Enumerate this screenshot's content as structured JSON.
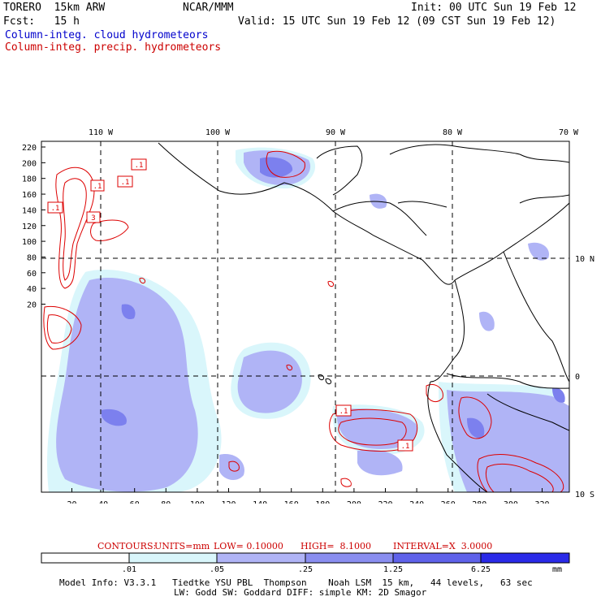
{
  "header": {
    "model": "TORERO  15km ARW",
    "org": "NCAR/MMM",
    "init": "Init: 00 UTC Sun 19 Feb 12",
    "fcst": "Fcst:   15 h",
    "valid": "Valid: 15 UTC Sun 19 Feb 12 (09 CST Sun 19 Feb 12)",
    "field_cloud": "Column-integ. cloud hydrometeors",
    "field_precip": "Column-integ. precip. hydrometeors"
  },
  "map": {
    "lon_labels": [
      "110 W",
      "100 W",
      "90 W",
      "80 W",
      "70 W"
    ],
    "lat_labels": [
      "10 N",
      "0",
      "10 S"
    ],
    "y_ticks": [
      "220",
      "200",
      "180",
      "160",
      "140",
      "120",
      "100",
      "80",
      "60",
      "40",
      "20"
    ],
    "x_ticks": [
      "20",
      "40",
      "60",
      "80",
      "100",
      "120",
      "140",
      "160",
      "180",
      "200",
      "220",
      "240",
      "260",
      "280",
      "300",
      "320"
    ],
    "contour_labels": [
      ".1",
      ".1",
      ".1",
      ".1",
      "3",
      ".1",
      ".1"
    ],
    "colors": {
      "cloud_shade": "#b0b4f6",
      "cloud_light": "#d9f6fb",
      "cloud_dark": "#7c80ee",
      "precip": "#dd0000",
      "coast": "#000000"
    }
  },
  "contour_info": {
    "label": "CONTOURS:",
    "units": "UNITS=mm",
    "low": "LOW= 0.10000",
    "high": "HIGH=  8.1000",
    "interval": "INTERVAL=X  3.0000"
  },
  "colorbar": {
    "ticks": [
      ".01",
      ".05",
      ".25",
      "1.25",
      "6.25"
    ],
    "unit": "mm",
    "colors": [
      "#ffffff",
      "#d9f6fb",
      "#b0b4f6",
      "#8a8ef0",
      "#5f62ea",
      "#2a2ae8"
    ]
  },
  "footer": {
    "line1": "Model Info: V3.3.1   Tiedtke YSU PBL  Thompson    Noah LSM  15 km,   44 levels,   63 sec",
    "line2": "LW: Godd SW: Goddard DIFF: simple KM: 2D Smagor"
  }
}
